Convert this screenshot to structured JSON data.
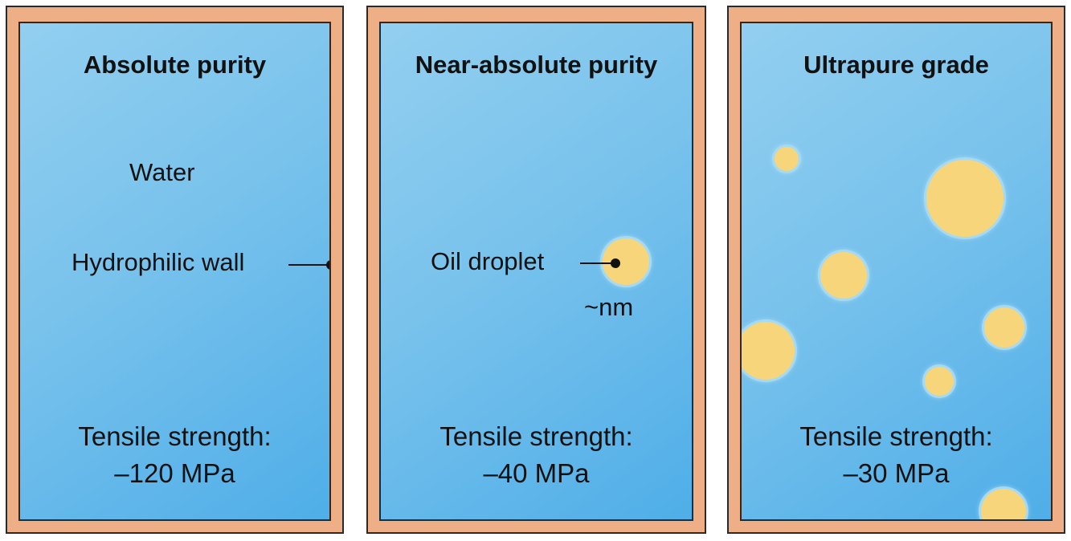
{
  "panels": [
    {
      "title": "Absolute purity",
      "water_label": "Water",
      "wall_label": "Hydrophilic wall",
      "strength_label": "Tensile strength:",
      "strength_value": "–120 MPa"
    },
    {
      "title": "Near-absolute purity",
      "droplet_label": "Oil droplet",
      "size_label": "~nm",
      "strength_label": "Tensile strength:",
      "strength_value": "–40 MPa"
    },
    {
      "title": "Ultrapure grade",
      "strength_label": "Tensile strength:",
      "strength_value": "–30 MPa"
    }
  ],
  "colors": {
    "wall": "#eeaf86",
    "water_light": "#93cff0",
    "water_dark": "#4faee8",
    "oil_droplet": "#f7d67b",
    "outline": "#2a2a2a"
  }
}
